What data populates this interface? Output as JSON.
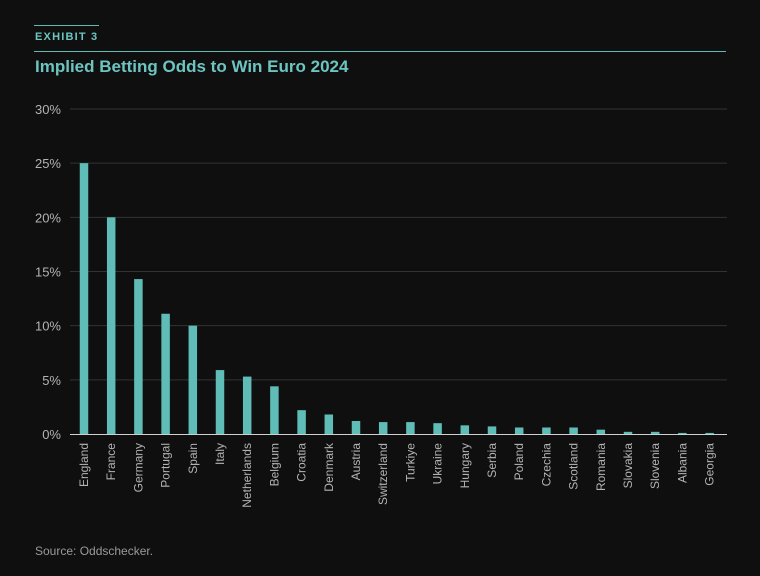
{
  "header": {
    "exhibit": "EXHIBIT 3",
    "title": "Implied Betting Odds to Win Euro 2024"
  },
  "footer": {
    "source": "Source: Oddschecker."
  },
  "colors": {
    "bar": "#5fbcb7",
    "accent": "#6cc5c0",
    "background": "#0f0f0f",
    "grid": "#333333"
  },
  "chart_data": {
    "type": "bar",
    "title": "Implied Betting Odds to Win Euro 2024",
    "xlabel": "",
    "ylabel": "",
    "ylim": [
      0,
      30
    ],
    "yticks": [
      "0%",
      "5%",
      "10%",
      "15%",
      "20%",
      "25%",
      "30%"
    ],
    "grid": true,
    "categories": [
      "England",
      "France",
      "Germany",
      "Portugal",
      "Spain",
      "Italy",
      "Netherlands",
      "Belgium",
      "Croatia",
      "Denmark",
      "Austria",
      "Switzerland",
      "Turkiye",
      "Ukraine",
      "Hungary",
      "Serbia",
      "Poland",
      "Czechia",
      "Scotland",
      "Romania",
      "Slovakia",
      "Slovenia",
      "Albania",
      "Georgia"
    ],
    "values": [
      25.0,
      20.0,
      14.3,
      11.1,
      10.0,
      5.9,
      5.3,
      4.4,
      2.2,
      1.8,
      1.2,
      1.1,
      1.1,
      1.0,
      0.8,
      0.7,
      0.6,
      0.6,
      0.6,
      0.4,
      0.2,
      0.2,
      0.1,
      0.1
    ]
  }
}
